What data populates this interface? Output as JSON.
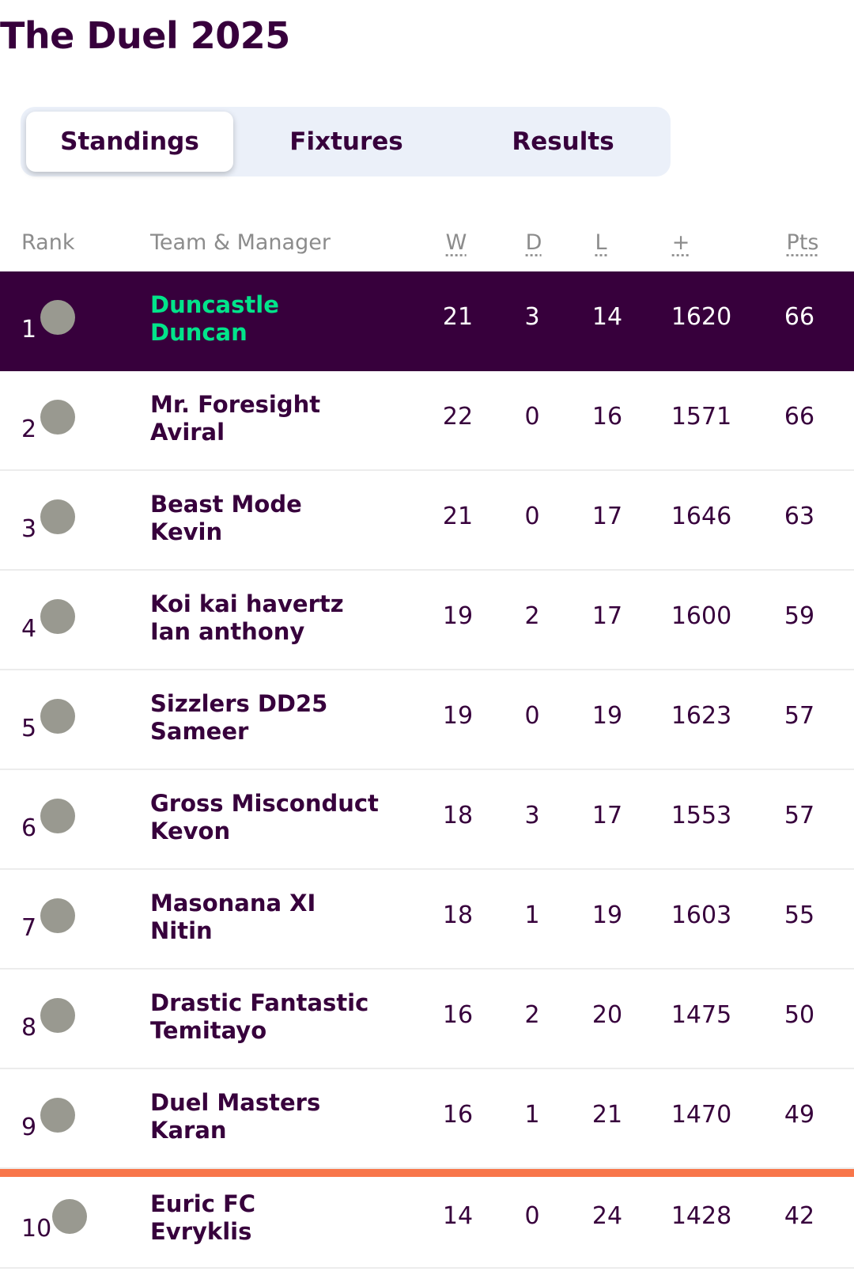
{
  "page": {
    "title": "The Duel 2025"
  },
  "tabs": [
    {
      "label": "Standings",
      "active": true
    },
    {
      "label": "Fixtures",
      "active": false
    },
    {
      "label": "Results",
      "active": false
    }
  ],
  "table": {
    "headers": {
      "rank": "Rank",
      "team": "Team & Manager",
      "w": "W",
      "d": "D",
      "l": "L",
      "plus": "+",
      "pts": "Pts"
    },
    "rows": [
      {
        "rank": "1",
        "team": "Duncastle",
        "manager": "Duncan",
        "w": "21",
        "d": "3",
        "l": "14",
        "plus": "1620",
        "pts": "66",
        "highlight": true
      },
      {
        "rank": "2",
        "team": "Mr. Foresight",
        "manager": "Aviral",
        "w": "22",
        "d": "0",
        "l": "16",
        "plus": "1571",
        "pts": "66"
      },
      {
        "rank": "3",
        "team": "Beast Mode",
        "manager": "Kevin",
        "w": "21",
        "d": "0",
        "l": "17",
        "plus": "1646",
        "pts": "63"
      },
      {
        "rank": "4",
        "team": "Koi kai havertz",
        "manager": "Ian anthony",
        "w": "19",
        "d": "2",
        "l": "17",
        "plus": "1600",
        "pts": "59"
      },
      {
        "rank": "5",
        "team": "Sizzlers DD25",
        "manager": "Sameer",
        "w": "19",
        "d": "0",
        "l": "19",
        "plus": "1623",
        "pts": "57"
      },
      {
        "rank": "6",
        "team": "Gross Misconduct",
        "manager": "Kevon",
        "w": "18",
        "d": "3",
        "l": "17",
        "plus": "1553",
        "pts": "57"
      },
      {
        "rank": "7",
        "team": "Masonana XI",
        "manager": "Nitin",
        "w": "18",
        "d": "1",
        "l": "19",
        "plus": "1603",
        "pts": "55"
      },
      {
        "rank": "8",
        "team": "Drastic Fantastic",
        "manager": "Temitayo",
        "w": "16",
        "d": "2",
        "l": "20",
        "plus": "1475",
        "pts": "50"
      },
      {
        "rank": "9",
        "team": "Duel Masters",
        "manager": "Karan",
        "w": "16",
        "d": "1",
        "l": "21",
        "plus": "1470",
        "pts": "49"
      },
      {
        "rank": "10",
        "team": "Euric FC",
        "manager": "Evryklis",
        "w": "14",
        "d": "0",
        "l": "24",
        "plus": "1428",
        "pts": "42",
        "relegation_line_above": true
      }
    ]
  },
  "colors": {
    "brand_purple": "#37003c",
    "highlight_text": "#02e48a",
    "relegation_line": "#f8764a",
    "tabbar_bg": "#ebf0f9"
  }
}
